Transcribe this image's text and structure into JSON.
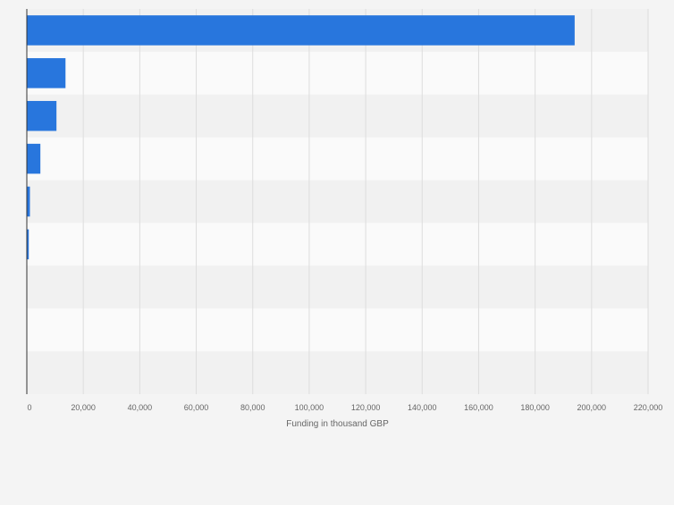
{
  "chart_data": {
    "type": "bar",
    "orientation": "horizontal",
    "categories": [
      "",
      "",
      "",
      "",
      "",
      "",
      "",
      "",
      ""
    ],
    "values": [
      194000,
      13700,
      10500,
      4800,
      1100,
      700,
      0,
      0,
      0
    ],
    "xlabel": "Funding in thousand GBP",
    "xlim": [
      0,
      220000
    ],
    "xticks": [
      0,
      20000,
      40000,
      60000,
      80000,
      100000,
      120000,
      140000,
      160000,
      180000,
      200000,
      220000
    ],
    "xtick_labels": [
      "0",
      "20,000",
      "40,000",
      "60,000",
      "80,000",
      "100,000",
      "120,000",
      "140,000",
      "160,000",
      "180,000",
      "200,000",
      "220,000"
    ],
    "grid": true,
    "colors": {
      "bar": "#2876dd",
      "band_light": "#fafafa",
      "band_dark": "#f1f1f1",
      "grid": "#dddddd",
      "axis": "#333333",
      "tick_text": "#666666"
    }
  }
}
